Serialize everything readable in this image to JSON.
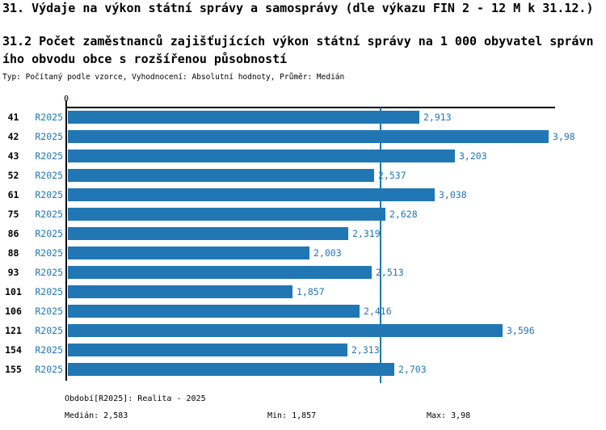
{
  "header": {
    "title": "31. Výdaje na výkon státní správy a samosprávy (dle výkazu FIN 2 - 12 M k 31.12.)",
    "subtitle_line1": "31.2 Počet zaměstnanců zajišťujících výkon státní správy na 1 000 obyvatel správn",
    "subtitle_line2": "ího obvodu obce s rozšířenou působností",
    "meta": "Typ: Počítaný podle vzorce, Vyhodnocení: Absolutní hodnoty, Průměr: Medián"
  },
  "chart_data": {
    "type": "bar",
    "orientation": "horizontal",
    "title": "31.2 Počet zaměstnanců zajišťujících výkon státní správy na 1 000 obyvatel správního obvodu obce s rozšířenou působností",
    "categories": [
      "41",
      "42",
      "43",
      "52",
      "61",
      "75",
      "86",
      "88",
      "93",
      "101",
      "106",
      "121",
      "154",
      "155"
    ],
    "series_label": "R2025",
    "values": [
      2.913,
      3.98,
      3.203,
      2.537,
      3.038,
      2.628,
      2.319,
      2.003,
      2.513,
      1.857,
      2.416,
      3.596,
      2.313,
      2.703
    ],
    "value_labels": [
      "2,913",
      "3,98",
      "3,203",
      "2,537",
      "3,038",
      "2,628",
      "2,319",
      "2,003",
      "2,513",
      "1,857",
      "2,416",
      "3,596",
      "2,313",
      "2,703"
    ],
    "axis": {
      "zero_tick_label": "0",
      "xlim": [
        0,
        4.03
      ],
      "grid": false,
      "value_axis_position": "top"
    },
    "median": {
      "value": 2.583,
      "label": "2,583"
    },
    "legend_position": "none",
    "colors": {
      "bar": "#2077B4",
      "axis": "#000000",
      "blue_text": "#2077B4"
    }
  },
  "footer": {
    "period": "Období[R2025]: Realita - 2025",
    "median": "Medián: 2,583",
    "min": "Min: 1,857",
    "max": "Max: 3,98"
  }
}
